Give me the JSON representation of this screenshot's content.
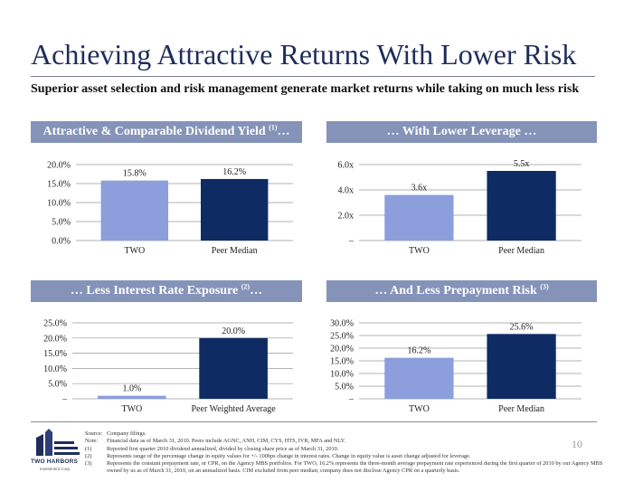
{
  "title": "Achieving Attractive Returns With Lower Risk",
  "subtitle": "Superior asset selection and risk management generate market returns while taking on much less risk",
  "chart_data": [
    {
      "type": "bar",
      "title": "Attractive & Comparable Dividend Yield",
      "title_suffix": "…",
      "footnote_ref": "(1)",
      "categories": [
        "TWO",
        "Peer Median"
      ],
      "values": [
        15.8,
        16.2
      ],
      "data_labels": [
        "15.8%",
        "16.2%"
      ],
      "ylim": [
        0,
        20
      ],
      "ticks": [
        0,
        5,
        10,
        15,
        20
      ],
      "tick_labels": [
        "0.0%",
        "5.0%",
        "10.0%",
        "15.0%",
        "20.0%"
      ],
      "colors": [
        "#8c9edc",
        "#0e2c63"
      ]
    },
    {
      "type": "bar",
      "title": "… With Lower Leverage …",
      "categories": [
        "TWO",
        "Peer Median"
      ],
      "values": [
        3.6,
        5.5
      ],
      "data_labels": [
        "3.6x",
        "5.5x"
      ],
      "ylim": [
        0,
        6
      ],
      "ticks": [
        0,
        2,
        4,
        6
      ],
      "tick_labels": [
        "–",
        "2.0x",
        "4.0x",
        "6.0x"
      ],
      "colors": [
        "#8c9edc",
        "#0e2c63"
      ]
    },
    {
      "type": "bar",
      "title": "… Less Interest Rate Exposure",
      "title_suffix": "…",
      "footnote_ref": "(2)",
      "categories": [
        "TWO",
        "Peer Weighted Average"
      ],
      "values": [
        1.0,
        20.0
      ],
      "data_labels": [
        "1.0%",
        "20.0%"
      ],
      "ylim": [
        0,
        25
      ],
      "ticks": [
        0,
        5,
        10,
        15,
        20,
        25
      ],
      "tick_labels": [
        "–",
        "5.0%",
        "10.0%",
        "15.0%",
        "20.0%",
        "25.0%"
      ],
      "colors": [
        "#8c9edc",
        "#0e2c63"
      ]
    },
    {
      "type": "bar",
      "title": "… And Less Prepayment Risk",
      "footnote_ref": "(3)",
      "categories": [
        "TWO",
        "Peer Median"
      ],
      "values": [
        16.2,
        25.6
      ],
      "data_labels": [
        "16.2%",
        "25.6%"
      ],
      "ylim": [
        0,
        30
      ],
      "ticks": [
        0,
        5,
        10,
        15,
        20,
        25,
        30
      ],
      "tick_labels": [
        "–",
        "5.0%",
        "10.0%",
        "15.0%",
        "20.0%",
        "25.0%",
        "30.0%"
      ],
      "colors": [
        "#8c9edc",
        "#0e2c63"
      ]
    }
  ],
  "footnotes": [
    {
      "label": "Source:",
      "text": "Company filings."
    },
    {
      "label": "Note:",
      "text": "Financial data as of March 31, 2010. Peers include AGNC, ANH, CIM, CYS, HTS, IVR, MFA and NLY."
    },
    {
      "label": "(1)",
      "text": "Reported first quarter 2010 dividend annualized, divided by closing share price as of March 31, 2010."
    },
    {
      "label": "(2)",
      "text": "Represents range of the percentage change in equity values for +/- 100bps change in interest rates. Change in equity value is asset change adjusted for leverage."
    },
    {
      "label": "(3)",
      "text": "Represents the constant prepayment rate, or CPR, on the Agency MBS portfolios. For TWO, 16.2% represents the three-month average prepayment rate experienced during the first quarter of 2010 by our Agency MBS owned by us as of March 31, 2010, on an annualized basis. CIM excluded from peer median; company does not disclose Agency CPR on a quarterly basis."
    }
  ],
  "logo": {
    "name": "TWO HARBORS",
    "sub": "Investment Corp."
  },
  "page_number": "10"
}
